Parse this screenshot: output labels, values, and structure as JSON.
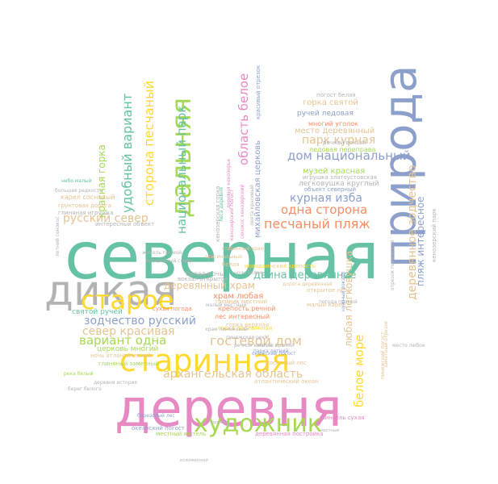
{
  "palette": {
    "teal": "#66c2a5",
    "orange": "#fc8d62",
    "blue": "#8da0cb",
    "pink": "#e78ac3",
    "green": "#a6d854",
    "yellow": "#ffd92f",
    "tan": "#e5c494",
    "gray": "#b3b3b3"
  },
  "words": [
    {
      "text": "северная",
      "color": "#66c2a5"
    },
    {
      "text": "деревня",
      "color": "#e78ac3"
    },
    {
      "text": "природа",
      "color": "#8da0cb"
    },
    {
      "text": "дикая",
      "color": "#b3b3b3"
    },
    {
      "text": "старинная",
      "color": "#ffd92f"
    },
    {
      "text": "старое",
      "color": "#ffd92f"
    },
    {
      "text": "дальняя",
      "color": "#a6d854"
    },
    {
      "text": "художник",
      "color": "#a6d854"
    },
    {
      "text": "архангельская область",
      "color": "#e5c494"
    },
    {
      "text": "гостевой дом",
      "color": "#e5c494"
    },
    {
      "text": "зодчество русский",
      "color": "#8da0cb"
    },
    {
      "text": "вариант одна",
      "color": "#a6d854"
    },
    {
      "text": "север красивая",
      "color": "#e5c494"
    },
    {
      "text": "русский север",
      "color": "#e5c494"
    },
    {
      "text": "песчаный пляж",
      "color": "#fc8d62"
    },
    {
      "text": "одна сторона",
      "color": "#fc8d62"
    },
    {
      "text": "курная изба",
      "color": "#8da0cb"
    },
    {
      "text": "дом национальный",
      "color": "#8da0cb"
    },
    {
      "text": "парк курная",
      "color": "#e5c494"
    },
    {
      "text": "двина деревянное",
      "color": "#66c2a5"
    },
    {
      "text": "деревянный храм",
      "color": "#e5c494"
    },
    {
      "text": "область белое",
      "color": "#e78ac3"
    },
    {
      "text": "национальный парк",
      "color": "#66c2a5"
    },
    {
      "text": "сторона песчаный",
      "color": "#ffd92f"
    },
    {
      "text": "удобный вариант",
      "color": "#66c2a5"
    },
    {
      "text": "деревянное зодчество",
      "color": "#e5c494"
    },
    {
      "text": "пляж интересное",
      "color": "#8da0cb"
    },
    {
      "text": "белое море",
      "color": "#ffd92f"
    },
    {
      "text": "любая легковушка",
      "color": "#e5c494"
    },
    {
      "text": "красная горка",
      "color": "#a6d854"
    },
    {
      "text": "горка святой",
      "color": "#e5c494"
    },
    {
      "text": "ручей ледовая",
      "color": "#8da0cb"
    },
    {
      "text": "место деревянный",
      "color": "#e5c494"
    },
    {
      "text": "музей красная",
      "color": "#a6d854"
    },
    {
      "text": "легковушка круглый",
      "color": "#b3b3b3"
    },
    {
      "text": "храм любая",
      "color": "#fc8d62"
    },
    {
      "text": "святой ручей",
      "color": "#66c2a5"
    },
    {
      "text": "церковь многий",
      "color": "#a6d854"
    },
    {
      "text": "михайловская церковь",
      "color": "#8da0cb"
    },
    {
      "text": "ледовая переправа",
      "color": "#a6d854"
    },
    {
      "text": "многий уголок",
      "color": "#fc8d62"
    },
    {
      "text": "белая ночь",
      "color": "#b3b3b3"
    },
    {
      "text": "вокзал открытое",
      "color": "#b3b3b3"
    },
    {
      "text": "тройник местный",
      "color": "#e5c494"
    },
    {
      "text": "крепость речной",
      "color": "#fc8d62"
    },
    {
      "text": "лес интересный",
      "color": "#fc8d62"
    },
    {
      "text": "горка деревянная",
      "color": "#ffd92f"
    },
    {
      "text": "открытое небо",
      "color": "#e5c494"
    },
    {
      "text": "малый карел",
      "color": "#e5c494"
    },
    {
      "text": "сосновый лес",
      "color": "#e5c494"
    },
    {
      "text": "сухая погода",
      "color": "#fc8d62"
    },
    {
      "text": "речной вокзал",
      "color": "#b3b3b3"
    },
    {
      "text": "игрушка златоустовская",
      "color": "#b3b3b3"
    },
    {
      "text": "объект северный",
      "color": "#8da0cb"
    },
    {
      "text": "погост белая",
      "color": "#b3b3b3"
    },
    {
      "text": "кенозерский парк",
      "color": "#b3b3b3"
    },
    {
      "text": "кенозерская горка",
      "color": "#b3b3b3"
    },
    {
      "text": "малый местный",
      "color": "#b3b3b3"
    },
    {
      "text": "новодвинская крепость",
      "color": "#ffd92f"
    },
    {
      "text": "горка верхняя",
      "color": "#e5c494"
    },
    {
      "text": "атлантический океан",
      "color": "#e5c494"
    },
    {
      "text": "глиняный заметный",
      "color": "#a6d854"
    },
    {
      "text": "ночь атлантический",
      "color": "#e5c494"
    },
    {
      "text": "деревня история",
      "color": "#b3b3b3"
    },
    {
      "text": "океанский погост",
      "color": "#8da0cb"
    },
    {
      "text": "местный житель",
      "color": "#a6d854"
    },
    {
      "text": "березовый лес",
      "color": "#8da0cb"
    },
    {
      "text": "деревянная постройка",
      "color": "#e78ac3"
    },
    {
      "text": "белая",
      "color": "#e5c494"
    },
    {
      "text": "карел сосновый",
      "color": "#e5c494"
    },
    {
      "text": "грунтовая дорога",
      "color": "#e5c494"
    },
    {
      "text": "глиняная игрушка",
      "color": "#b3b3b3"
    },
    {
      "text": "небо малый",
      "color": "#66c2a5"
    },
    {
      "text": "интересный объект",
      "color": "#b3b3b3"
    },
    {
      "text": "летний сенокос",
      "color": "#b3b3b3"
    },
    {
      "text": "большая редкость",
      "color": "#b3b3b3"
    },
    {
      "text": "старинный храм",
      "color": "#e5c494"
    },
    {
      "text": "пинсель сухая",
      "color": "#e78ac3"
    },
    {
      "text": "онежский погост",
      "color": "#8da0cb"
    },
    {
      "text": "место любое",
      "color": "#b3b3b3"
    },
    {
      "text": "дорога деревянная",
      "color": "#e5c494"
    },
    {
      "text": "парка летний",
      "color": "#8da0cb"
    },
    {
      "text": "место прямой",
      "color": "#b3b3b3"
    },
    {
      "text": "оригинальный",
      "color": "#e5c494"
    },
    {
      "text": "пинежский погост",
      "color": "#e5c494"
    },
    {
      "text": "погода прямой",
      "color": "#b3b3b3"
    },
    {
      "text": "нужный вокзал",
      "color": "#8da0cb"
    },
    {
      "text": "отрезок пинежский",
      "color": "#b3b3b3"
    },
    {
      "text": "кенозерский погост",
      "color": "#e78ac3"
    },
    {
      "text": "сенокос кенозерский",
      "color": "#e78ac3"
    },
    {
      "text": "лента красивый",
      "color": "#b3b3b3"
    },
    {
      "text": "деревня кенозерье",
      "color": "#e78ac3"
    },
    {
      "text": "красивый отрезок",
      "color": "#8da0cb"
    },
    {
      "text": "интересный север",
      "color": "#b3b3b3"
    },
    {
      "text": "житель прямой",
      "color": "#b3b3b3"
    },
    {
      "text": "леса деревня",
      "color": "#66c2a5"
    },
    {
      "text": "заметный отрезок",
      "color": "#e5c494"
    },
    {
      "text": "храм пинежский",
      "color": "#b3b3b3"
    },
    {
      "text": "речной многий",
      "color": "#b3b3b3"
    },
    {
      "text": "река белый",
      "color": "#a6d854"
    },
    {
      "text": "берег белого",
      "color": "#b3b3b3"
    },
    {
      "text": "пинежская река",
      "color": "#b3b3b3"
    },
    {
      "text": "ночь белая",
      "color": "#b3b3b3"
    },
    {
      "text": "местный",
      "color": "#b3b3b3"
    },
    {
      "text": "коломенский",
      "color": "#b3b3b3"
    },
    {
      "text": "прямой",
      "color": "#b3b3b3"
    }
  ]
}
